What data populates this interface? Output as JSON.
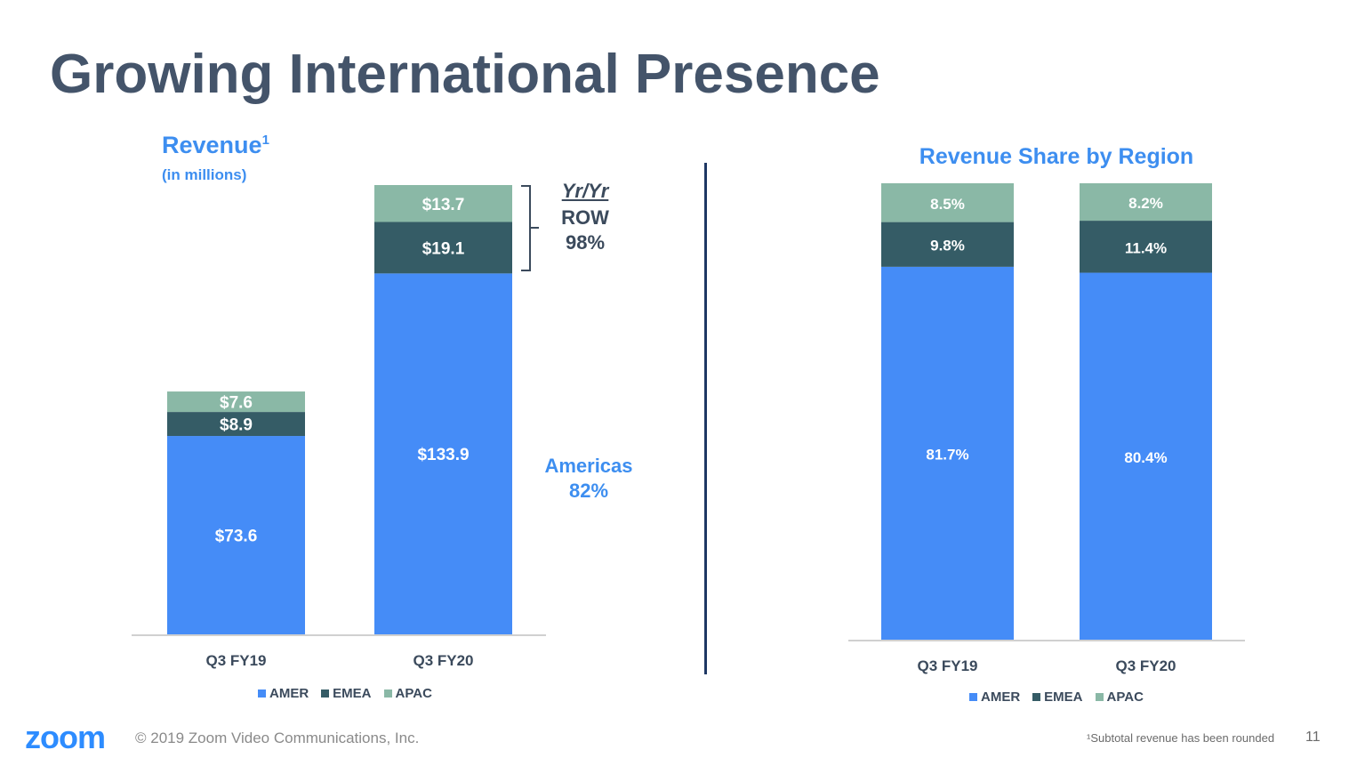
{
  "title": "Growing International Presence",
  "revenue_chart": {
    "title": "Revenue",
    "title_superscript": "1",
    "subtitle": "(in millions)"
  },
  "share_chart": {
    "title": "Revenue Share by Region"
  },
  "annotations": {
    "yr_yr": "Yr/Yr",
    "row_label": "ROW",
    "row_pct": "98%",
    "americas_label": "Americas",
    "americas_pct": "82%"
  },
  "colors": {
    "AMER": "#458cf7",
    "EMEA": "#355c66",
    "APAC": "#8ab8a6",
    "label_light": "#ffffff"
  },
  "chart_data": [
    {
      "type": "bar",
      "stacked": true,
      "categories": [
        "Q3 FY19",
        "Q3 FY20"
      ],
      "series": [
        {
          "name": "AMER",
          "values": [
            73.6,
            133.9
          ],
          "labels": [
            "$73.6",
            "$133.9"
          ]
        },
        {
          "name": "EMEA",
          "values": [
            8.9,
            19.1
          ],
          "labels": [
            "$8.9",
            "$19.1"
          ]
        },
        {
          "name": "APAC",
          "values": [
            7.6,
            13.7
          ],
          "labels": [
            "$7.6",
            "$13.7"
          ]
        }
      ],
      "title": "Revenue",
      "ylim": [
        0,
        166.7
      ],
      "legend": "bottom"
    },
    {
      "type": "bar",
      "stacked": true,
      "categories": [
        "Q3 FY19",
        "Q3 FY20"
      ],
      "series": [
        {
          "name": "AMER",
          "values": [
            81.7,
            80.4
          ],
          "labels": [
            "81.7%",
            "80.4%"
          ]
        },
        {
          "name": "EMEA",
          "values": [
            9.8,
            11.4
          ],
          "labels": [
            "9.8%",
            "11.4%"
          ]
        },
        {
          "name": "APAC",
          "values": [
            8.5,
            8.2
          ],
          "labels": [
            "8.5%",
            "8.2%"
          ]
        }
      ],
      "title": "Revenue Share by Region",
      "ylim": [
        0,
        100
      ],
      "legend": "bottom"
    }
  ],
  "footer": {
    "logo": "zoom",
    "copyright": "© 2019 Zoom Video Communications, Inc.",
    "note": "¹Subtotal revenue has been rounded",
    "page": "11"
  }
}
